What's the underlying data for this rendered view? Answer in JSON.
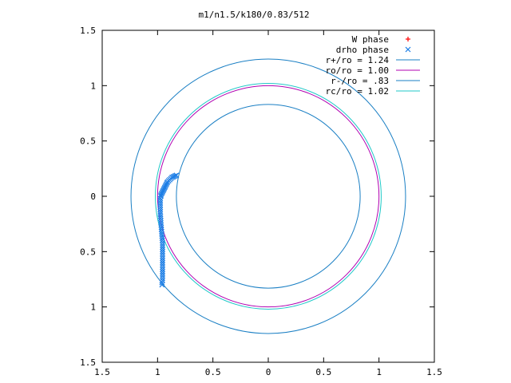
{
  "chart_data": {
    "type": "scatter",
    "title": "m1/n1.5/k180/0.83/512",
    "xlabel": "",
    "ylabel": "",
    "xlim": [
      -1.5,
      1.5
    ],
    "ylim": [
      -1.5,
      1.5
    ],
    "x_ticks": [
      -1.5,
      -1,
      -0.5,
      0,
      0.5,
      1,
      1.5
    ],
    "y_ticks": [
      -1.5,
      -1,
      -0.5,
      0,
      0.5,
      1,
      1.5
    ],
    "x_tick_labels": [
      "1.5",
      "1",
      "0.5",
      "0",
      "0.5",
      "1",
      "1.5"
    ],
    "y_tick_labels": [
      "1.5",
      "1",
      "0.5",
      "0",
      "0.5",
      "1",
      "1.5"
    ],
    "grid": false,
    "legend_position": "top-right",
    "legend": [
      {
        "label": "W phase",
        "marker": "plus",
        "color": "#ff0000"
      },
      {
        "label": "drho phase",
        "marker": "cross",
        "color": "#1e7fe6"
      },
      {
        "label": "r+/ro = 1.24",
        "line": true,
        "color": "#1a7fc4"
      },
      {
        "label": "ro/ro = 1.00",
        "line": true,
        "color": "#b000b0"
      },
      {
        "label": "r-/ro = .83",
        "line": true,
        "color": "#1a7fc4"
      },
      {
        "label": "rc/ro = 1.02",
        "line": true,
        "color": "#20c8c8"
      }
    ],
    "circles": [
      {
        "name": "r+/ro",
        "radius": 1.24,
        "color": "#1a7fc4"
      },
      {
        "name": "ro/ro",
        "radius": 1.0,
        "color": "#b000b0"
      },
      {
        "name": "r-/ro",
        "radius": 0.83,
        "color": "#1a7fc4"
      },
      {
        "name": "rc/ro",
        "radius": 1.02,
        "color": "#20c8c8"
      }
    ],
    "series": [
      {
        "name": "drho phase",
        "marker": "cross",
        "color": "#1e7fe6",
        "points": [
          [
            -0.83,
            0.19
          ],
          [
            -0.84,
            0.185
          ],
          [
            -0.85,
            0.18
          ],
          [
            -0.86,
            0.175
          ],
          [
            -0.87,
            0.17
          ],
          [
            -0.88,
            0.16
          ],
          [
            -0.89,
            0.15
          ],
          [
            -0.9,
            0.14
          ],
          [
            -0.91,
            0.13
          ],
          [
            -0.915,
            0.12
          ],
          [
            -0.92,
            0.11
          ],
          [
            -0.925,
            0.1
          ],
          [
            -0.93,
            0.09
          ],
          [
            -0.935,
            0.08
          ],
          [
            -0.94,
            0.07
          ],
          [
            -0.945,
            0.06
          ],
          [
            -0.95,
            0.05
          ],
          [
            -0.955,
            0.04
          ],
          [
            -0.96,
            0.03
          ],
          [
            -0.965,
            0.02
          ],
          [
            -0.97,
            0.01
          ],
          [
            -0.97,
            0.0
          ],
          [
            -0.975,
            -0.02
          ],
          [
            -0.975,
            -0.04
          ],
          [
            -0.975,
            -0.06
          ],
          [
            -0.975,
            -0.08
          ],
          [
            -0.975,
            -0.1
          ],
          [
            -0.975,
            -0.12
          ],
          [
            -0.975,
            -0.14
          ],
          [
            -0.975,
            -0.16
          ],
          [
            -0.973,
            -0.18
          ],
          [
            -0.972,
            -0.2
          ],
          [
            -0.97,
            -0.22
          ],
          [
            -0.97,
            -0.24
          ],
          [
            -0.968,
            -0.26
          ],
          [
            -0.966,
            -0.28
          ],
          [
            -0.965,
            -0.3
          ],
          [
            -0.963,
            -0.32
          ],
          [
            -0.962,
            -0.34
          ],
          [
            -0.96,
            -0.36
          ],
          [
            -0.958,
            -0.38
          ],
          [
            -0.957,
            -0.4
          ],
          [
            -0.955,
            -0.42
          ],
          [
            -0.955,
            -0.44
          ],
          [
            -0.955,
            -0.46
          ],
          [
            -0.955,
            -0.48
          ],
          [
            -0.955,
            -0.5
          ],
          [
            -0.955,
            -0.52
          ],
          [
            -0.955,
            -0.54
          ],
          [
            -0.955,
            -0.56
          ],
          [
            -0.955,
            -0.58
          ],
          [
            -0.955,
            -0.6
          ],
          [
            -0.955,
            -0.62
          ],
          [
            -0.955,
            -0.64
          ],
          [
            -0.955,
            -0.66
          ],
          [
            -0.955,
            -0.68
          ],
          [
            -0.955,
            -0.7
          ],
          [
            -0.955,
            -0.72
          ],
          [
            -0.955,
            -0.74
          ],
          [
            -0.955,
            -0.76
          ],
          [
            -0.96,
            -0.78
          ],
          [
            -0.96,
            -0.8
          ]
        ]
      }
    ]
  }
}
